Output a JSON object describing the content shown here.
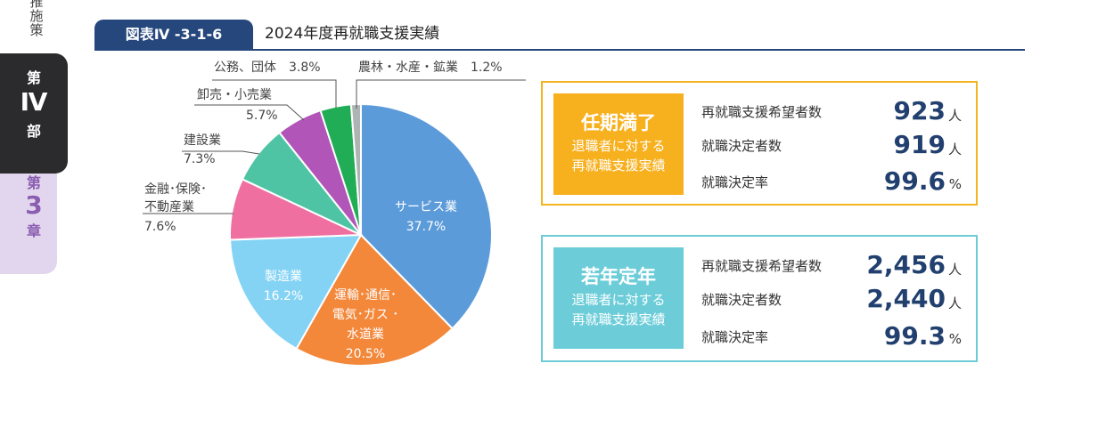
{
  "side": {
    "top_text": "推施策",
    "part": [
      "第",
      "Ⅳ",
      "部"
    ],
    "chapter": [
      "第",
      "3",
      "章"
    ]
  },
  "header": {
    "figure_no": "図表Ⅳ -3-1-6",
    "title": "2024年度再就職支援実績"
  },
  "chart_data": {
    "type": "pie",
    "title": "2024年度再就職支援実績",
    "unit": "%",
    "start": "12 o'clock, clockwise",
    "slices": [
      {
        "label": "サービス業",
        "value": 37.7,
        "value_text": "37.7%",
        "color": "#5b9bd9"
      },
      {
        "label": "運輸・通信・電気・ガス・水道業",
        "value": 20.5,
        "value_text": "20.5%",
        "color": "#f3873a"
      },
      {
        "label": "製造業",
        "value": 16.2,
        "value_text": "16.2%",
        "color": "#84d3f5"
      },
      {
        "label": "金融・保険・不動産業",
        "value": 7.6,
        "value_text": "7.6%",
        "color": "#ef6fa1"
      },
      {
        "label": "建設業",
        "value": 7.3,
        "value_text": "7.3%",
        "color": "#4fc4a4"
      },
      {
        "label": "卸売・小売業",
        "value": 5.7,
        "value_text": "5.7%",
        "color": "#b155b8"
      },
      {
        "label": "公務、団体",
        "value": 3.8,
        "value_text": "3.8%",
        "color": "#21ad55"
      },
      {
        "label": "農林・水産・鉱業",
        "value": 1.2,
        "value_text": "1.2%",
        "color": "#aeb3b3"
      }
    ],
    "label_lines": {
      "services": [
        "サービス業",
        "37.7%"
      ],
      "transport": [
        "運輸･通信･",
        "電気･ガス ･",
        "水道業",
        "20.5%"
      ],
      "manufacturing": [
        "製造業",
        "16.2%"
      ],
      "finance": [
        "金融･保険･",
        "不動産業",
        "7.6%"
      ],
      "construction": [
        "建設業",
        "7.3%"
      ],
      "retail": [
        "卸売・小売業",
        "5.7%"
      ],
      "public": [
        "公務、団体　3.8%"
      ],
      "agri": [
        "農林・水産・鉱業　1.2%"
      ]
    }
  },
  "boxes": [
    {
      "title": "任期満了",
      "subtitle": [
        "退職者に対する",
        "再就職支援実績"
      ],
      "rows": [
        {
          "label": "再就職支援希望者数",
          "value": "923",
          "unit": "人"
        },
        {
          "label": "就職決定者数",
          "value": "919",
          "unit": "人"
        },
        {
          "label": "就職決定率",
          "value": "99.6",
          "unit": "%"
        }
      ]
    },
    {
      "title": "若年定年",
      "subtitle": [
        "退職者に対する",
        "再就職支援実績"
      ],
      "rows": [
        {
          "label": "再就職支援希望者数",
          "value": "2,456",
          "unit": "人"
        },
        {
          "label": "就職決定者数",
          "value": "2,440",
          "unit": "人"
        },
        {
          "label": "就職決定率",
          "value": "99.3",
          "unit": "%"
        }
      ]
    }
  ]
}
